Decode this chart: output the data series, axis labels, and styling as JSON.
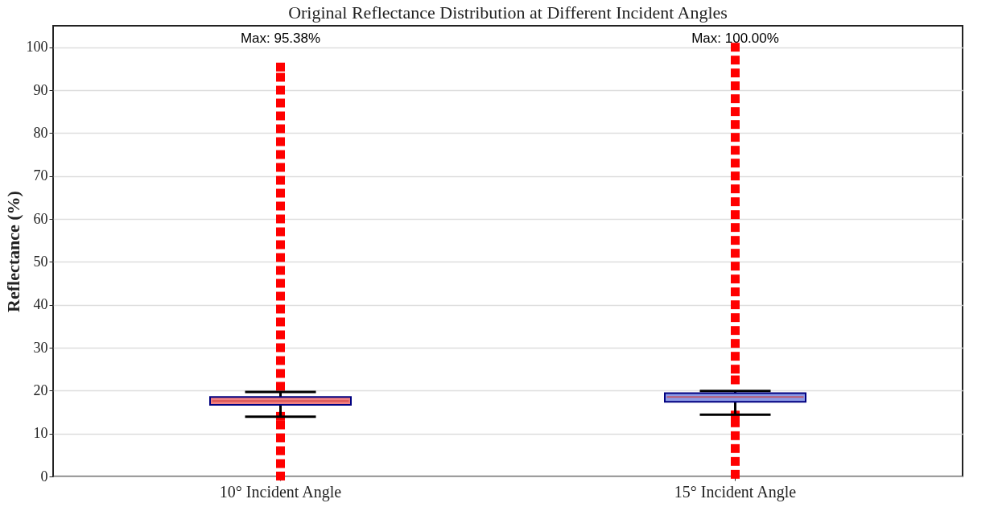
{
  "chart_data": {
    "type": "box",
    "title": "Original Reflectance Distribution at Different Incident Angles",
    "ylabel": "Reflectance (%)",
    "categories": [
      "10° Incident Angle",
      "15° Incident Angle"
    ],
    "colors": [
      "#f08080",
      "#8c9be6"
    ],
    "boxes": [
      {
        "low": 13.9,
        "q1": 16.7,
        "median": 17.6,
        "q3": 18.5,
        "high": 19.7,
        "outliers": [
          0.1,
          3,
          6,
          9,
          12,
          14,
          21,
          24,
          27,
          30,
          33,
          36,
          39,
          42,
          45,
          48,
          51,
          54,
          57,
          60,
          63,
          66,
          69,
          72,
          75,
          78,
          81,
          84,
          87,
          90,
          93,
          95.38
        ]
      },
      {
        "low": 14.4,
        "q1": 17.4,
        "median": 18.5,
        "q3": 19.4,
        "high": 19.9,
        "outliers": [
          0.5,
          3.5,
          6.5,
          9.5,
          12.5,
          14.3,
          22.5,
          25,
          28,
          31,
          34,
          37,
          40,
          43,
          46,
          49,
          52,
          55,
          58,
          61,
          64,
          67,
          70,
          73,
          76,
          79,
          82,
          85,
          88,
          91,
          94,
          97,
          100
        ]
      }
    ],
    "ylim": [
      0,
      105
    ],
    "yticks": [
      0,
      10,
      20,
      30,
      40,
      50,
      60,
      70,
      80,
      90,
      100
    ],
    "grid": "y",
    "annotations": [
      "Max: 95.38%",
      "Max: 100.00%"
    ]
  }
}
